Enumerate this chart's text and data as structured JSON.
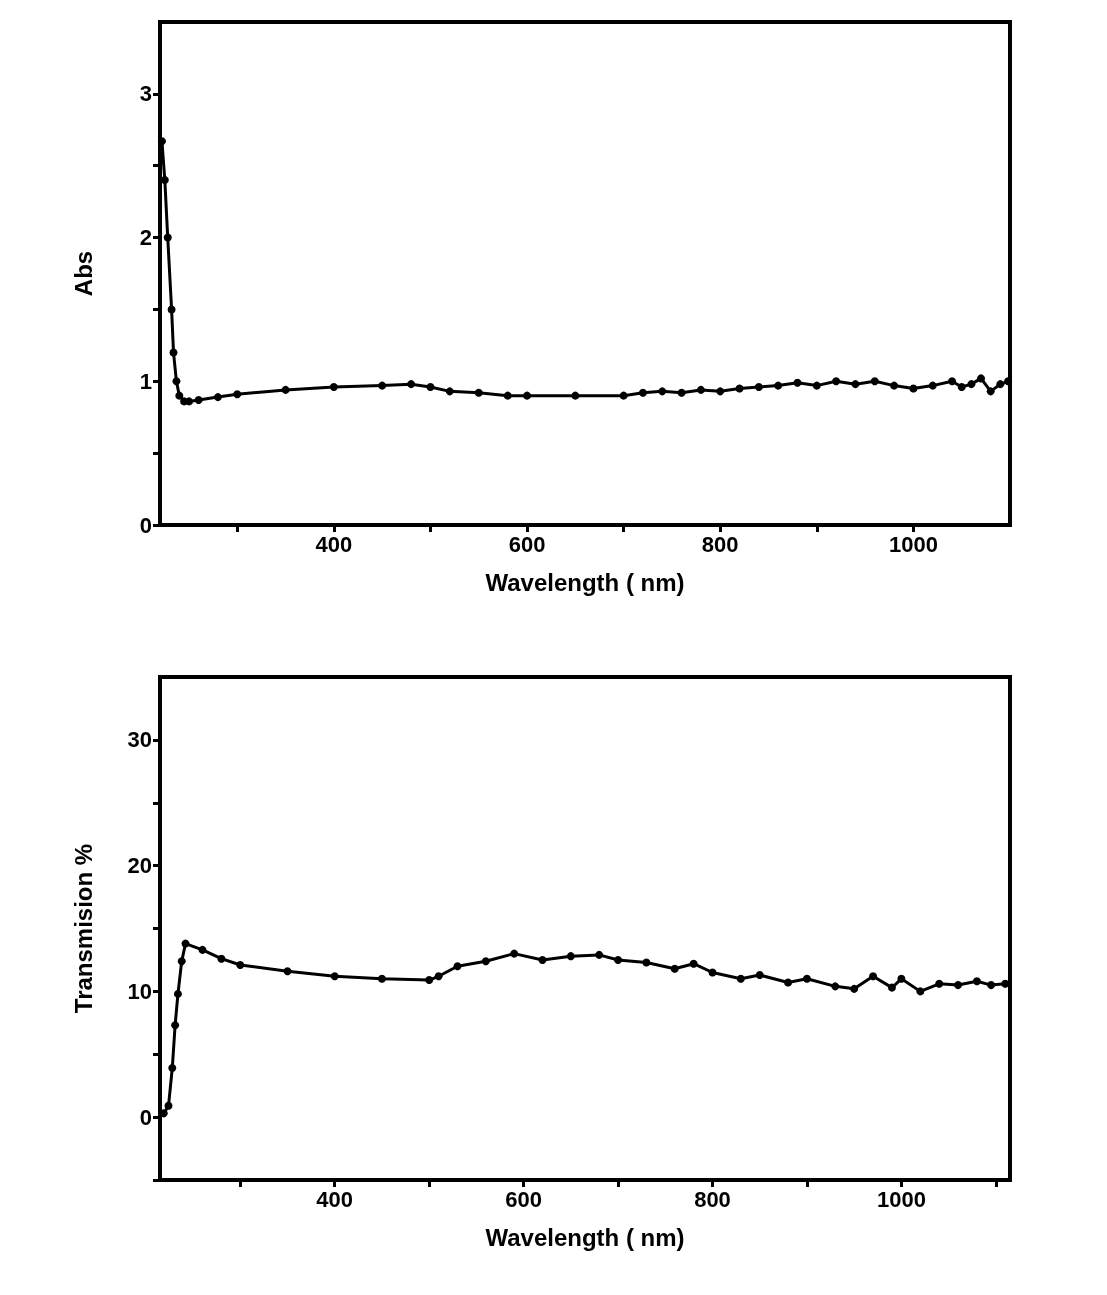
{
  "chart_data": [
    {
      "type": "line",
      "xlabel": "Wavelength ( nm)",
      "ylabel": "Abs",
      "marker": "circle",
      "line_style": "solid",
      "grid": false,
      "xlim": [
        220,
        1100
      ],
      "xticks": [
        {
          "value": 300,
          "label": null
        },
        400,
        {
          "value": 500,
          "label": null
        },
        600,
        {
          "value": 700,
          "label": null
        },
        800,
        {
          "value": 900,
          "label": null
        },
        1000
      ],
      "ylim": [
        0,
        3.5
      ],
      "yticks": [
        0,
        {
          "value": 0.5,
          "label": null
        },
        1,
        {
          "value": 1.5,
          "label": null
        },
        2,
        {
          "value": 2.5,
          "label": null
        },
        3
      ],
      "series": [
        {
          "color": "#000000",
          "x": [
            222,
            225,
            228,
            232,
            234,
            237,
            240,
            245,
            250,
            260,
            280,
            300,
            350,
            400,
            450,
            480,
            500,
            520,
            550,
            580,
            600,
            650,
            700,
            720,
            740,
            760,
            780,
            800,
            820,
            840,
            860,
            880,
            900,
            920,
            940,
            960,
            980,
            1000,
            1020,
            1040,
            1050,
            1060,
            1070,
            1080,
            1090,
            1098
          ],
          "values": [
            2.67,
            2.4,
            2.0,
            1.5,
            1.2,
            1.0,
            0.9,
            0.86,
            0.86,
            0.87,
            0.89,
            0.91,
            0.94,
            0.96,
            0.97,
            0.98,
            0.96,
            0.93,
            0.92,
            0.9,
            0.9,
            0.9,
            0.9,
            0.92,
            0.93,
            0.92,
            0.94,
            0.93,
            0.95,
            0.96,
            0.97,
            0.99,
            0.97,
            1.0,
            0.98,
            1.0,
            0.97,
            0.95,
            0.97,
            1.0,
            0.96,
            0.98,
            1.02,
            0.93,
            0.98,
            1.0
          ]
        }
      ]
    },
    {
      "type": "line",
      "xlabel": "Wavelength ( nm)",
      "ylabel": "Transmision %",
      "marker": "circle",
      "line_style": "solid",
      "grid": false,
      "xlim": [
        215,
        1115
      ],
      "xticks": [
        {
          "value": 300,
          "label": null
        },
        400,
        {
          "value": 500,
          "label": null
        },
        600,
        {
          "value": 700,
          "label": null
        },
        800,
        {
          "value": 900,
          "label": null
        },
        1000,
        {
          "value": 1100,
          "label": null
        }
      ],
      "ylim": [
        -5,
        35
      ],
      "yticks": [
        {
          "value": -5,
          "label": null
        },
        0,
        {
          "value": 5,
          "label": null
        },
        10,
        {
          "value": 15,
          "label": null
        },
        20,
        {
          "value": 25,
          "label": null
        },
        30
      ],
      "series": [
        {
          "color": "#000000",
          "x": [
            219,
            224,
            228,
            231,
            234,
            238,
            242,
            260,
            280,
            300,
            350,
            400,
            450,
            500,
            510,
            530,
            560,
            590,
            620,
            650,
            680,
            700,
            730,
            760,
            780,
            800,
            830,
            850,
            880,
            900,
            930,
            950,
            970,
            990,
            1000,
            1020,
            1040,
            1060,
            1080,
            1095,
            1110
          ],
          "values": [
            0.3,
            0.9,
            3.9,
            7.3,
            9.8,
            12.4,
            13.8,
            13.3,
            12.6,
            12.1,
            11.6,
            11.2,
            11.0,
            10.9,
            11.2,
            12.0,
            12.4,
            13.0,
            12.5,
            12.8,
            12.9,
            12.5,
            12.3,
            11.8,
            12.2,
            11.5,
            11.0,
            11.3,
            10.7,
            11.0,
            10.4,
            10.2,
            11.2,
            10.3,
            11.0,
            10.0,
            10.6,
            10.5,
            10.8,
            10.5,
            10.6
          ]
        }
      ]
    }
  ]
}
